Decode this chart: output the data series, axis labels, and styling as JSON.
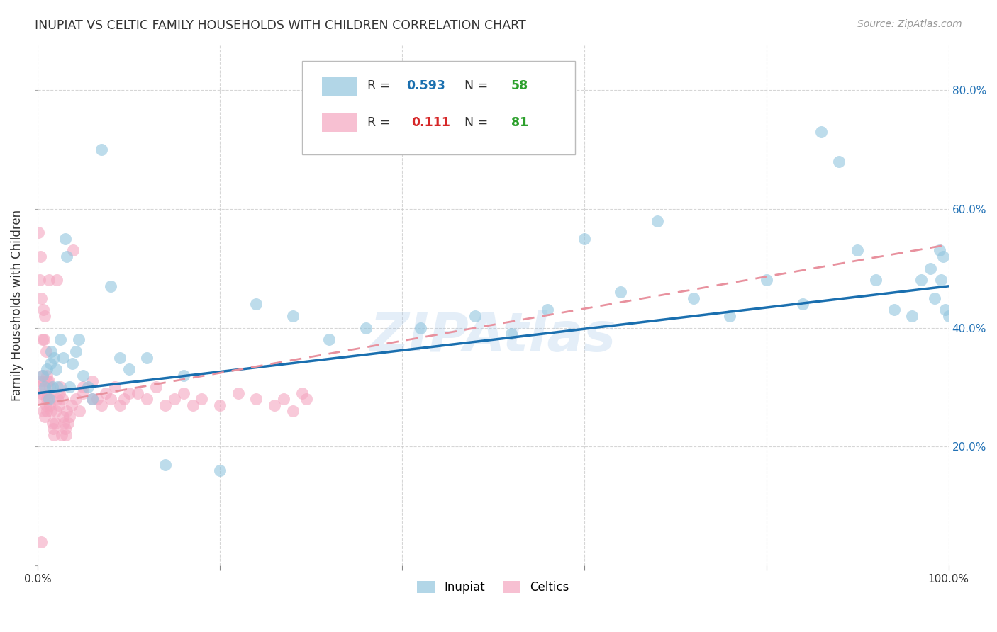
{
  "title": "INUPIAT VS CELTIC FAMILY HOUSEHOLDS WITH CHILDREN CORRELATION CHART",
  "source": "Source: ZipAtlas.com",
  "ylabel": "Family Households with Children",
  "watermark": "ZIPAtlas",
  "xlim": [
    0,
    1.0
  ],
  "ylim": [
    0,
    0.875
  ],
  "xticks": [
    0.0,
    0.2,
    0.4,
    0.6,
    0.8,
    1.0
  ],
  "xtick_labels": [
    "0.0%",
    "",
    "",
    "",
    "",
    "100.0%"
  ],
  "right_yticks": [
    0.2,
    0.4,
    0.6,
    0.8
  ],
  "right_ytick_labels": [
    "20.0%",
    "40.0%",
    "60.0%",
    "80.0%"
  ],
  "inupiat_color": "#92c5de",
  "celtics_color": "#f4a6c0",
  "inupiat_line_color": "#1a6faf",
  "celtics_line_color": "#e8919e",
  "inupiat_R": "0.593",
  "inupiat_N": "58",
  "celtics_R": "0.111",
  "celtics_N": "81",
  "legend_R_color_inu": "#1a6faf",
  "legend_N_color": "#2ca02c",
  "legend_R_color_cel": "#d62728",
  "inupiat_x": [
    0.005,
    0.008,
    0.01,
    0.012,
    0.014,
    0.015,
    0.016,
    0.018,
    0.02,
    0.022,
    0.025,
    0.028,
    0.03,
    0.032,
    0.035,
    0.038,
    0.042,
    0.045,
    0.05,
    0.055,
    0.06,
    0.07,
    0.08,
    0.09,
    0.1,
    0.12,
    0.14,
    0.16,
    0.2,
    0.24,
    0.28,
    0.32,
    0.36,
    0.42,
    0.48,
    0.52,
    0.56,
    0.6,
    0.64,
    0.68,
    0.72,
    0.76,
    0.8,
    0.84,
    0.86,
    0.88,
    0.9,
    0.92,
    0.94,
    0.96,
    0.97,
    0.98,
    0.985,
    0.99,
    0.992,
    0.994,
    0.996,
    1.0
  ],
  "inupiat_y": [
    0.32,
    0.3,
    0.33,
    0.28,
    0.34,
    0.36,
    0.3,
    0.35,
    0.33,
    0.3,
    0.38,
    0.35,
    0.55,
    0.52,
    0.3,
    0.34,
    0.36,
    0.38,
    0.32,
    0.3,
    0.28,
    0.7,
    0.47,
    0.35,
    0.33,
    0.35,
    0.17,
    0.32,
    0.16,
    0.44,
    0.42,
    0.38,
    0.4,
    0.4,
    0.42,
    0.39,
    0.43,
    0.55,
    0.46,
    0.58,
    0.45,
    0.42,
    0.48,
    0.44,
    0.73,
    0.68,
    0.53,
    0.48,
    0.43,
    0.42,
    0.48,
    0.5,
    0.45,
    0.53,
    0.48,
    0.52,
    0.43,
    0.42
  ],
  "celtics_x": [
    0.001,
    0.001,
    0.002,
    0.002,
    0.003,
    0.003,
    0.004,
    0.004,
    0.005,
    0.005,
    0.006,
    0.006,
    0.007,
    0.007,
    0.008,
    0.008,
    0.009,
    0.009,
    0.01,
    0.01,
    0.01,
    0.011,
    0.011,
    0.012,
    0.012,
    0.013,
    0.013,
    0.014,
    0.015,
    0.016,
    0.017,
    0.018,
    0.019,
    0.02,
    0.021,
    0.022,
    0.023,
    0.024,
    0.025,
    0.026,
    0.027,
    0.028,
    0.029,
    0.03,
    0.031,
    0.032,
    0.033,
    0.035,
    0.037,
    0.039,
    0.042,
    0.046,
    0.05,
    0.06,
    0.07,
    0.08,
    0.09,
    0.1,
    0.12,
    0.14,
    0.16,
    0.18,
    0.2,
    0.22,
    0.24,
    0.26,
    0.27,
    0.28,
    0.29,
    0.295,
    0.05,
    0.06,
    0.065,
    0.075,
    0.085,
    0.095,
    0.11,
    0.13,
    0.15,
    0.17,
    0.004
  ],
  "celtics_y": [
    0.3,
    0.56,
    0.28,
    0.48,
    0.31,
    0.52,
    0.29,
    0.45,
    0.32,
    0.38,
    0.26,
    0.43,
    0.31,
    0.38,
    0.25,
    0.42,
    0.27,
    0.36,
    0.32,
    0.28,
    0.26,
    0.31,
    0.29,
    0.48,
    0.31,
    0.27,
    0.3,
    0.28,
    0.26,
    0.24,
    0.23,
    0.22,
    0.24,
    0.26,
    0.48,
    0.28,
    0.27,
    0.29,
    0.3,
    0.22,
    0.28,
    0.25,
    0.24,
    0.23,
    0.22,
    0.26,
    0.24,
    0.25,
    0.27,
    0.53,
    0.28,
    0.26,
    0.29,
    0.28,
    0.27,
    0.28,
    0.27,
    0.29,
    0.28,
    0.27,
    0.29,
    0.28,
    0.27,
    0.29,
    0.28,
    0.27,
    0.28,
    0.26,
    0.29,
    0.28,
    0.3,
    0.31,
    0.28,
    0.29,
    0.3,
    0.28,
    0.29,
    0.3,
    0.28,
    0.27,
    0.04
  ],
  "inupiat_trend": [
    0.29,
    0.47
  ],
  "celtics_trend": [
    0.27,
    0.54
  ]
}
